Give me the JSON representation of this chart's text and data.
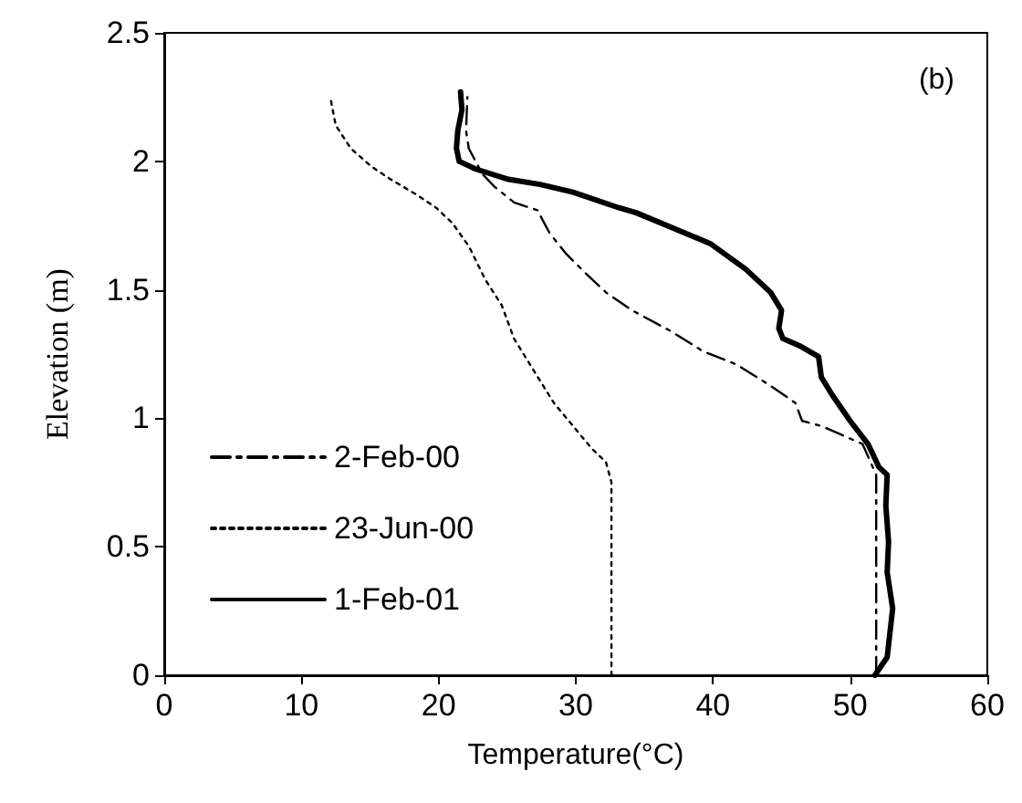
{
  "chart_data": {
    "type": "line",
    "xlabel": "Temperature(°C)",
    "ylabel": "Elevation (m)",
    "annotations": [
      "(b)"
    ],
    "xlim": [
      0,
      60
    ],
    "xticks": [
      0,
      10,
      20,
      30,
      40,
      50,
      60
    ],
    "ylim": [
      0,
      2.5
    ],
    "yticks": [
      0,
      0.5,
      1,
      1.5,
      2,
      2.5
    ],
    "grid": false,
    "legend": "bottom left",
    "marker": "none",
    "series": [
      {
        "name": "2-Feb-00",
        "color": "#000000",
        "line_style": "dashed",
        "x": [
          51.9,
          51.9,
          51.9,
          50.9,
          47.9,
          46.5,
          46.0,
          44.1,
          41.7,
          39.3,
          36.9,
          34.1,
          32.2,
          30.8,
          29.3,
          28.1,
          27.2,
          25.5,
          24.1,
          23.2,
          22.2,
          22.0,
          22.1
        ],
        "values": [
          0,
          0.4,
          0.78,
          0.9,
          0.97,
          0.99,
          1.06,
          1.13,
          1.21,
          1.26,
          1.34,
          1.42,
          1.49,
          1.56,
          1.64,
          1.72,
          1.81,
          1.84,
          1.9,
          1.95,
          2.05,
          2.12,
          2.25
        ]
      },
      {
        "name": "23-Jun-00",
        "color": "#000000",
        "line_style": "dotted",
        "x": [
          32.6,
          32.6,
          32.6,
          32.2,
          31.2,
          29.8,
          28.4,
          27.0,
          25.5,
          24.6,
          23.4,
          22.2,
          21.0,
          19.8,
          18.4,
          16.5,
          15.1,
          13.6,
          12.5,
          12.1
        ],
        "values": [
          0,
          0.4,
          0.75,
          0.83,
          0.88,
          0.97,
          1.06,
          1.18,
          1.31,
          1.44,
          1.54,
          1.67,
          1.76,
          1.82,
          1.87,
          1.93,
          1.98,
          2.05,
          2.14,
          2.25
        ]
      },
      {
        "name": "1-Feb-01",
        "color": "#000000",
        "line_style": "solid",
        "x": [
          51.8,
          52.7,
          53.1,
          52.7,
          52.8,
          52.6,
          52.7,
          52.1,
          51.3,
          50.0,
          48.7,
          47.9,
          47.7,
          46.4,
          45.1,
          44.8,
          45.0,
          44.2,
          42.4,
          39.8,
          37.1,
          34.4,
          33.1,
          29.8,
          27.4,
          25.1,
          22.7,
          21.5,
          21.3,
          21.4,
          21.7,
          21.6
        ],
        "values": [
          0,
          0.07,
          0.26,
          0.4,
          0.52,
          0.66,
          0.78,
          0.81,
          0.9,
          0.99,
          1.09,
          1.16,
          1.24,
          1.28,
          1.31,
          1.35,
          1.42,
          1.49,
          1.58,
          1.68,
          1.74,
          1.8,
          1.82,
          1.88,
          1.91,
          1.93,
          1.97,
          2.0,
          2.05,
          2.12,
          2.2,
          2.27
        ]
      }
    ]
  }
}
